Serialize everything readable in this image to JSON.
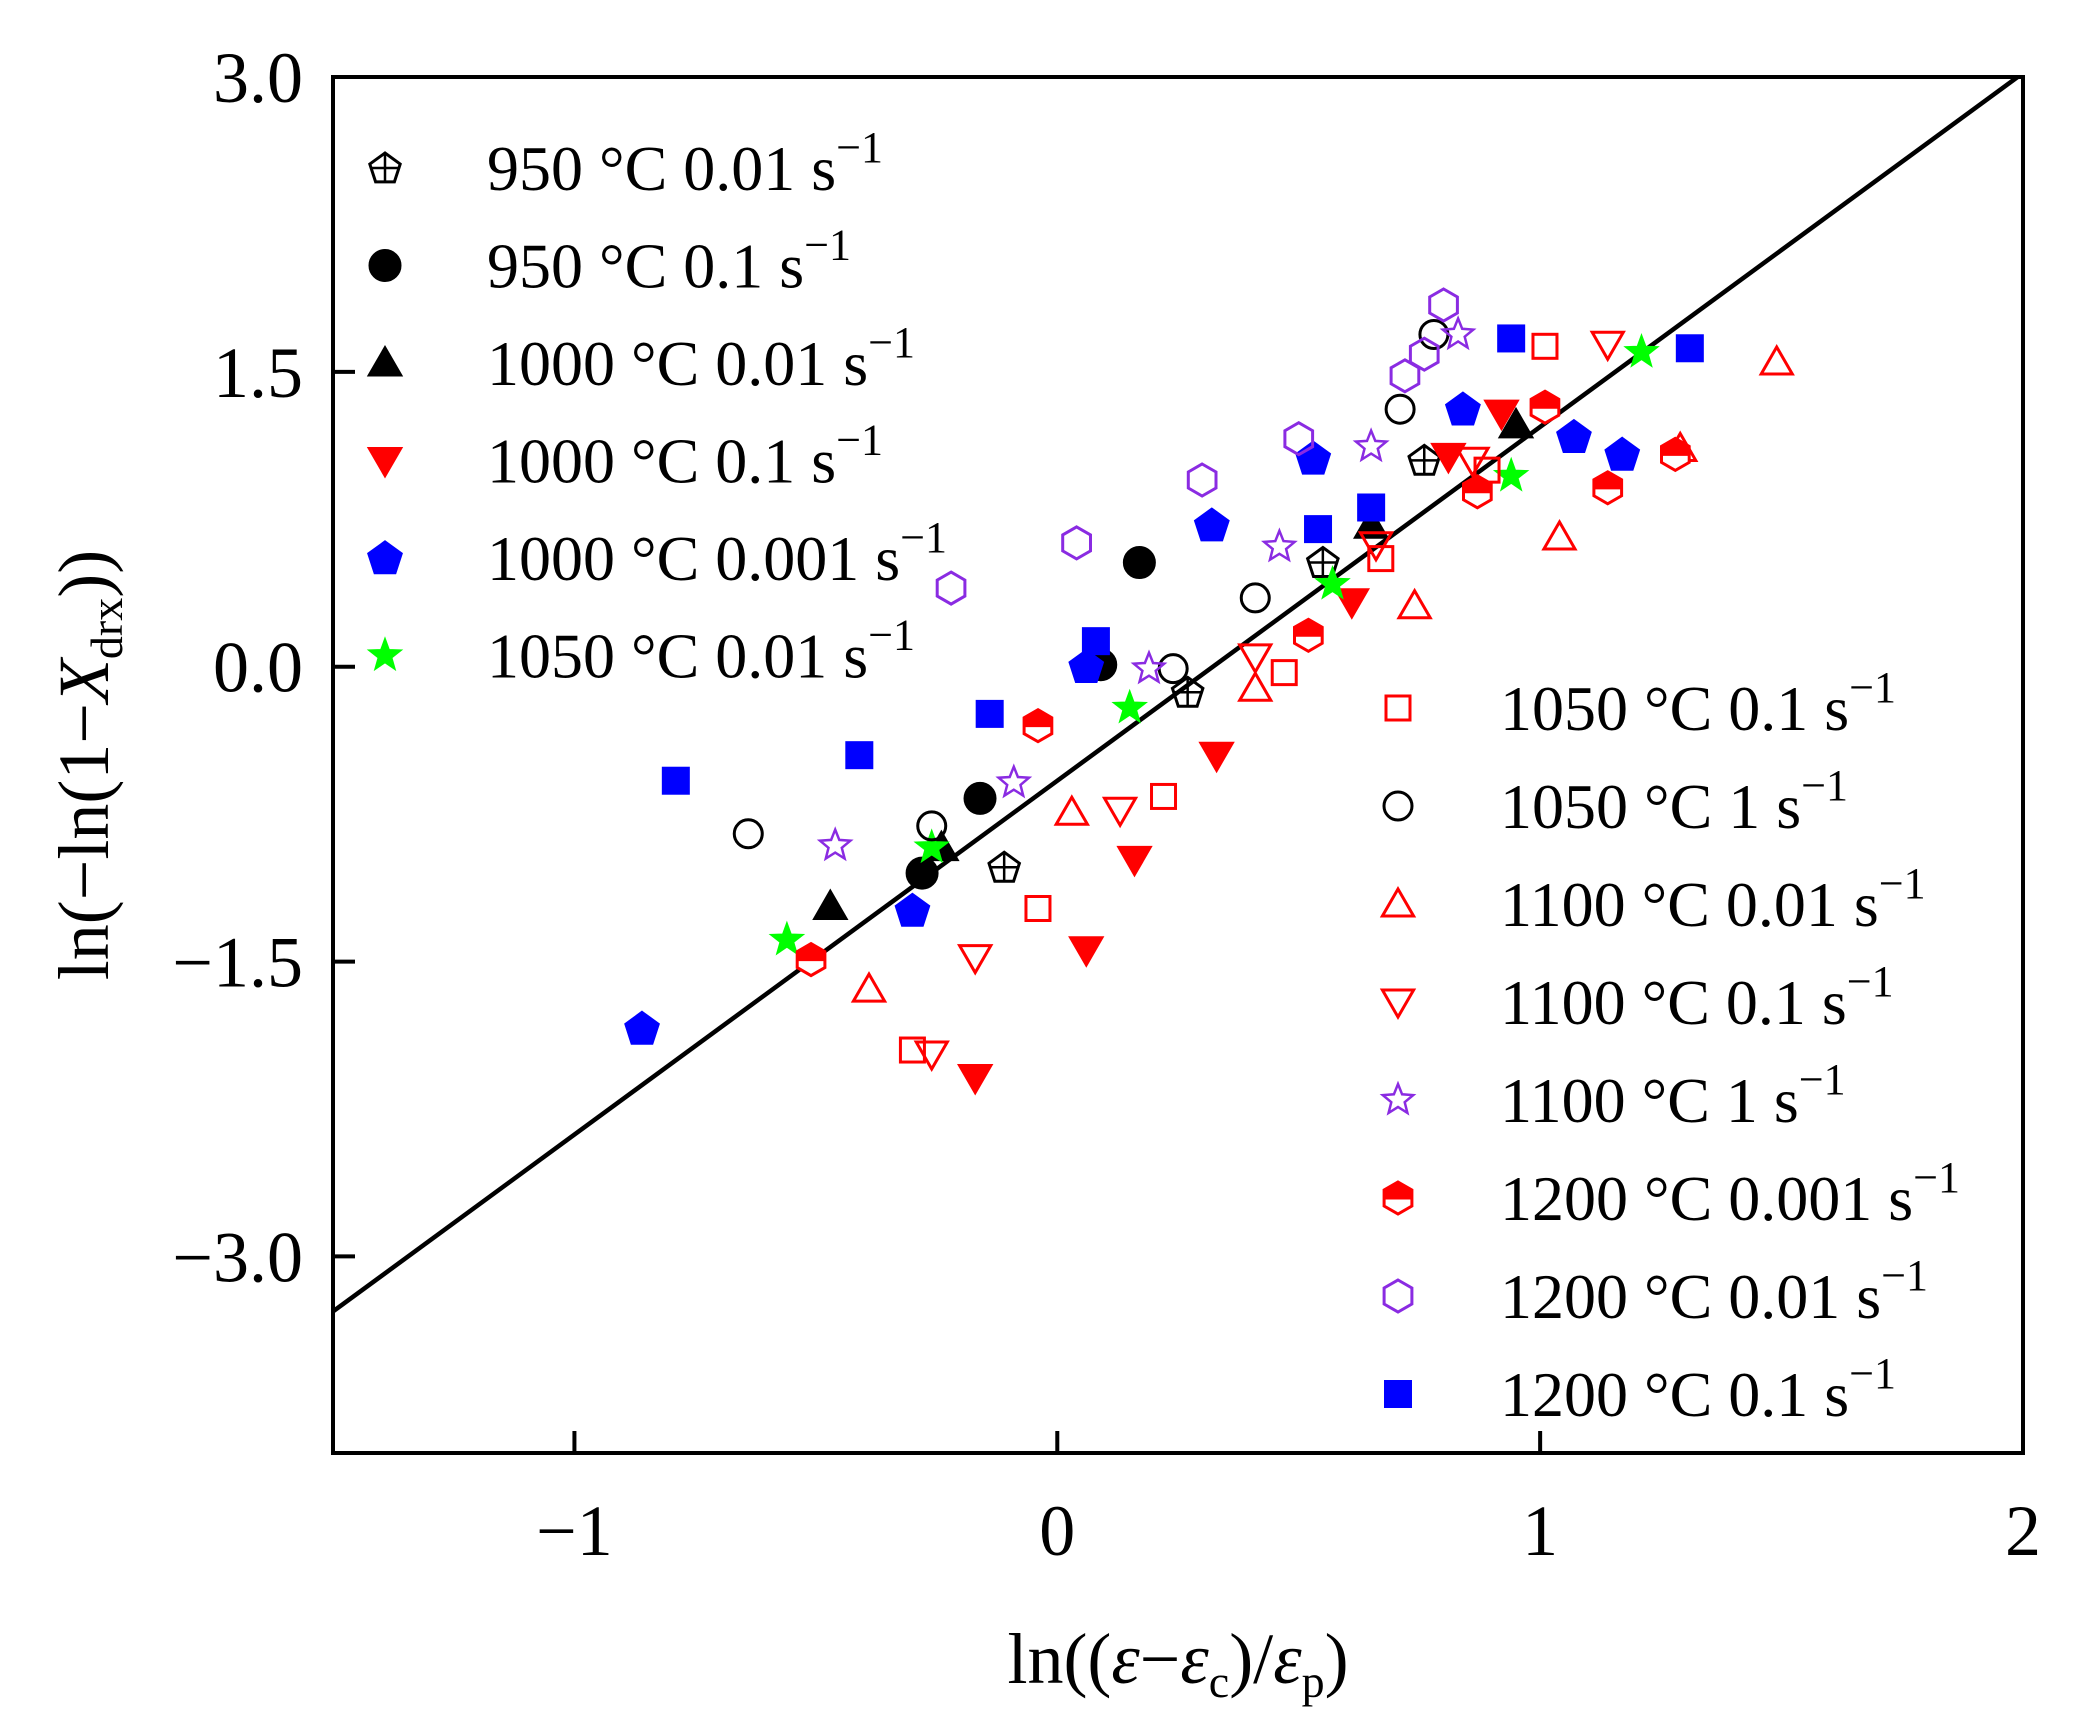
{
  "chart_data": {
    "type": "scatter",
    "title": "",
    "xlim": [
      -1.5,
      2.0
    ],
    "ylim": [
      -4.0,
      3.0
    ],
    "x_ticks": [
      -1,
      0,
      1,
      2
    ],
    "x_tick_labels": [
      "−1",
      "0",
      "1",
      "2"
    ],
    "y_ticks": [
      3.0,
      1.5,
      0.0,
      -1.5,
      -3.0
    ],
    "y_tick_labels": [
      "3.0",
      "1.5",
      "0.0",
      "−1.5",
      "−3.0"
    ],
    "fit_line": {
      "slope": 1.8,
      "intercept": -0.58
    },
    "series": [
      {
        "name": "950 °C 0.01 s⁻¹",
        "label": "950 °C 0.01",
        "marker": "pentagon-cross",
        "color": "#000000",
        "filled": false,
        "points": [
          [
            -0.11,
            -1.02
          ],
          [
            0.27,
            -0.13
          ],
          [
            0.55,
            0.53
          ],
          [
            0.76,
            1.05
          ]
        ]
      },
      {
        "name": "950 °C 0.1 s⁻¹",
        "label": "950 °C 0.1",
        "marker": "circle",
        "color": "#000000",
        "filled": true,
        "points": [
          [
            -0.28,
            -1.05
          ],
          [
            -0.16,
            -0.67
          ],
          [
            0.09,
            0.01
          ],
          [
            0.17,
            0.53
          ]
        ]
      },
      {
        "name": "1000 °C 0.01 s⁻¹",
        "label": "1000 °C 0.01",
        "marker": "triangle-up",
        "color": "#000000",
        "filled": true,
        "points": [
          [
            -0.47,
            -1.22
          ],
          [
            -0.24,
            -0.92
          ],
          [
            0.65,
            0.72
          ],
          [
            0.95,
            1.23
          ]
        ]
      },
      {
        "name": "1000 °C 0.1 s⁻¹",
        "label": "1000 °C 0.1",
        "marker": "triangle-down",
        "color": "#ff0000",
        "filled": true,
        "points": [
          [
            -0.17,
            -2.09
          ],
          [
            0.06,
            -1.44
          ],
          [
            0.16,
            -0.98
          ],
          [
            0.33,
            -0.45
          ],
          [
            0.61,
            0.33
          ],
          [
            0.81,
            1.07
          ],
          [
            0.92,
            1.29
          ]
        ]
      },
      {
        "name": "1000 °C 0.001 s⁻¹",
        "label": "1000 °C 0.001",
        "marker": "pentagon",
        "color": "#0000ff",
        "filled": true,
        "points": [
          [
            -0.86,
            -1.84
          ],
          [
            -0.3,
            -1.24
          ],
          [
            0.06,
            0.0
          ],
          [
            0.32,
            0.72
          ],
          [
            0.53,
            1.06
          ],
          [
            0.84,
            1.31
          ],
          [
            1.07,
            1.17
          ],
          [
            1.17,
            1.08
          ]
        ]
      },
      {
        "name": "1050 °C 0.01 s⁻¹",
        "label": "1050 °C 0.01",
        "marker": "star",
        "color": "#00ff00",
        "filled": true,
        "points": [
          [
            -0.56,
            -1.39
          ],
          [
            -0.26,
            -0.92
          ],
          [
            0.15,
            -0.21
          ],
          [
            0.57,
            0.42
          ],
          [
            0.94,
            0.97
          ],
          [
            1.21,
            1.6
          ]
        ]
      },
      {
        "name": "1050 °C 0.1 s⁻¹",
        "label": "1050 °C 0.1",
        "marker": "square",
        "color": "#ff0000",
        "filled": false,
        "points": [
          [
            -0.3,
            -1.95
          ],
          [
            -0.04,
            -1.23
          ],
          [
            0.22,
            -0.66
          ],
          [
            0.47,
            -0.03
          ],
          [
            0.67,
            0.55
          ],
          [
            0.89,
            1.0
          ],
          [
            1.01,
            1.63
          ]
        ]
      },
      {
        "name": "1050 °C 1 s⁻¹",
        "label": "1050 °C 1",
        "marker": "circle",
        "color": "#000000",
        "filled": false,
        "points": [
          [
            -0.64,
            -0.85
          ],
          [
            -0.26,
            -0.81
          ],
          [
            0.24,
            -0.01
          ],
          [
            0.41,
            0.35
          ],
          [
            0.71,
            1.31
          ],
          [
            0.78,
            1.69
          ]
        ]
      },
      {
        "name": "1100 °C 0.01 s⁻¹",
        "label": "1100 °C 0.01",
        "marker": "triangle-up",
        "color": "#ff0000",
        "filled": false,
        "points": [
          [
            -0.39,
            -1.64
          ],
          [
            0.03,
            -0.74
          ],
          [
            0.41,
            -0.11
          ],
          [
            0.74,
            0.31
          ],
          [
            1.04,
            0.66
          ],
          [
            1.29,
            1.11
          ],
          [
            1.49,
            1.55
          ]
        ]
      },
      {
        "name": "1100 °C 0.1 s⁻¹",
        "label": "1100 °C 0.1",
        "marker": "triangle-down",
        "color": "#ff0000",
        "filled": false,
        "points": [
          [
            -0.26,
            -1.97
          ],
          [
            -0.17,
            -1.48
          ],
          [
            0.13,
            -0.73
          ],
          [
            0.41,
            0.05
          ],
          [
            0.66,
            0.62
          ],
          [
            0.86,
            1.05
          ],
          [
            1.14,
            1.64
          ]
        ]
      },
      {
        "name": "1100 °C 1 s⁻¹",
        "label": "1100 °C 1",
        "marker": "star",
        "color": "#8a2be2",
        "filled": false,
        "points": [
          [
            -0.46,
            -0.91
          ],
          [
            -0.09,
            -0.59
          ],
          [
            0.19,
            -0.01
          ],
          [
            0.46,
            0.61
          ],
          [
            0.65,
            1.12
          ],
          [
            0.83,
            1.69
          ]
        ]
      },
      {
        "name": "1200 °C 0.001 s⁻¹",
        "label": "1200 °C 0.001",
        "marker": "hexagon-half",
        "color": "#ff0000",
        "filled": true,
        "points": [
          [
            -0.51,
            -1.49
          ],
          [
            -0.04,
            -0.3
          ],
          [
            0.52,
            0.16
          ],
          [
            0.87,
            0.89
          ],
          [
            1.01,
            1.32
          ],
          [
            1.14,
            0.91
          ],
          [
            1.28,
            1.08
          ]
        ]
      },
      {
        "name": "1200 °C 0.01 s⁻¹",
        "label": "1200 °C 0.01",
        "marker": "hexagon",
        "color": "#8a2be2",
        "filled": false,
        "points": [
          [
            -0.22,
            0.4
          ],
          [
            0.04,
            0.63
          ],
          [
            0.3,
            0.95
          ],
          [
            0.5,
            1.16
          ],
          [
            0.72,
            1.48
          ],
          [
            0.76,
            1.59
          ],
          [
            0.8,
            1.84
          ]
        ]
      },
      {
        "name": "1200 °C 0.1 s⁻¹",
        "label": "1200 °C 0.1",
        "marker": "square",
        "color": "#0000ff",
        "filled": true,
        "points": [
          [
            -0.79,
            -0.58
          ],
          [
            -0.41,
            -0.45
          ],
          [
            -0.14,
            -0.24
          ],
          [
            0.08,
            0.13
          ],
          [
            0.54,
            0.7
          ],
          [
            0.65,
            0.81
          ],
          [
            0.94,
            1.67
          ],
          [
            1.31,
            1.62
          ]
        ]
      }
    ],
    "legend_placement": "split: top-left (first 6 series) and bottom-right (last 8 series)"
  }
}
